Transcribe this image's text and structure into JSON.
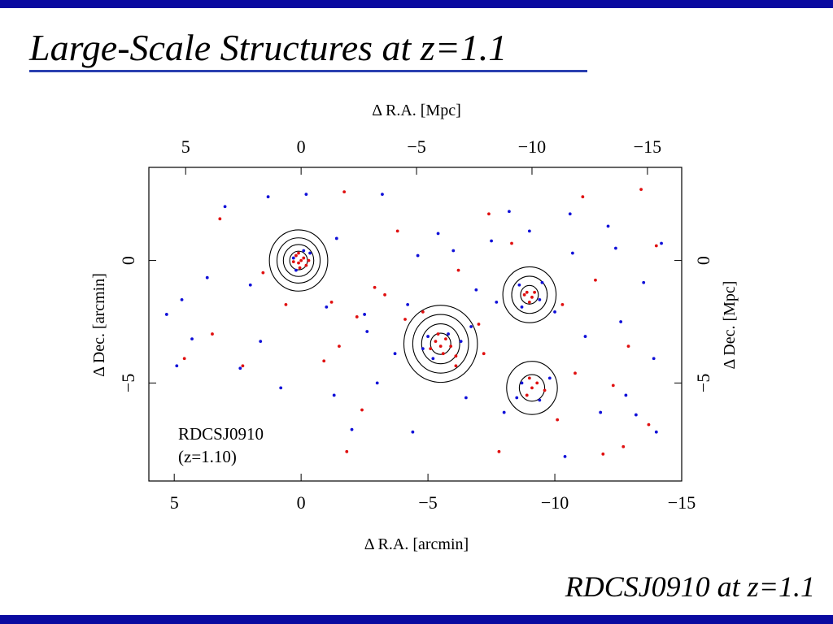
{
  "slide": {
    "title": "Large-Scale Structures at z=1.1",
    "caption": "RDCSJ0910 at z=1.1",
    "bar_color": "#0a0aa0"
  },
  "chart_data": {
    "type": "scatter",
    "xlabel_bottom": "Δ R.A.   [arcmin]",
    "xlabel_top": "Δ R.A.   [Mpc]",
    "ylabel_left": "Δ Dec.   [arcmin]",
    "ylabel_right": "Δ Dec.   [Mpc]",
    "xlim": [
      6.0,
      -15.0
    ],
    "ylim": [
      -9.0,
      3.8
    ],
    "x_ticks_bottom": [
      5,
      0,
      -5,
      -10,
      -15
    ],
    "x_tick_labels_bottom": [
      "5",
      "0",
      "−5",
      "−10",
      "−15"
    ],
    "x_ticks_top_mpc": [
      5,
      0,
      -5,
      -10,
      -15
    ],
    "x_tick_labels_top": [
      "5",
      "0",
      "−5",
      "−10",
      "−15"
    ],
    "y_ticks_left": [
      0,
      -5
    ],
    "y_tick_labels_left": [
      "0",
      "−5"
    ],
    "y_ticks_right_mpc": [
      0,
      -5
    ],
    "y_tick_labels_right": [
      "0",
      "−5"
    ],
    "annotation": [
      "RDCSJ0910",
      "(z=1.10)"
    ],
    "grid": false,
    "series": [
      {
        "color": "#e01010",
        "points": [
          [
            0.0,
            0.0
          ],
          [
            0.1,
            -0.1
          ],
          [
            -0.1,
            0.1
          ],
          [
            0.2,
            0.2
          ],
          [
            -0.2,
            -0.2
          ],
          [
            0.05,
            -0.3
          ],
          [
            -0.3,
            0.0
          ],
          [
            0.3,
            -0.05
          ],
          [
            0.1,
            0.3
          ],
          [
            -5.3,
            -3.3
          ],
          [
            -5.5,
            -3.5
          ],
          [
            -5.7,
            -3.2
          ],
          [
            -5.1,
            -3.6
          ],
          [
            -5.6,
            -3.8
          ],
          [
            -5.9,
            -3.5
          ],
          [
            -5.4,
            -3.0
          ],
          [
            -6.1,
            -3.9
          ],
          [
            -8.9,
            -1.3
          ],
          [
            -9.1,
            -1.5
          ],
          [
            -9.0,
            -1.7
          ],
          [
            -8.8,
            -1.4
          ],
          [
            -9.2,
            -1.3
          ],
          [
            -9.1,
            -5.2
          ],
          [
            -9.3,
            -5.0
          ],
          [
            -8.9,
            -5.5
          ],
          [
            -9.6,
            -5.3
          ],
          [
            -9.0,
            -4.8
          ],
          [
            4.6,
            -4.0
          ],
          [
            3.5,
            -3.0
          ],
          [
            2.3,
            -4.3
          ],
          [
            1.5,
            -0.5
          ],
          [
            0.6,
            -1.8
          ],
          [
            -1.2,
            -1.7
          ],
          [
            -1.5,
            -3.5
          ],
          [
            -1.8,
            -7.8
          ],
          [
            -2.2,
            -2.3
          ],
          [
            -2.9,
            -1.1
          ],
          [
            -4.1,
            -2.4
          ],
          [
            -6.1,
            -4.3
          ],
          [
            -7.0,
            -2.6
          ],
          [
            -7.4,
            1.9
          ],
          [
            -7.2,
            -3.8
          ],
          [
            -7.8,
            -7.8
          ],
          [
            -8.3,
            0.7
          ],
          [
            -10.1,
            -6.5
          ],
          [
            -10.3,
            -1.8
          ],
          [
            -11.1,
            2.6
          ],
          [
            -11.6,
            -0.8
          ],
          [
            -12.7,
            -7.6
          ],
          [
            -12.9,
            -3.5
          ],
          [
            -13.4,
            2.9
          ],
          [
            -13.7,
            -6.7
          ],
          [
            -14.0,
            0.6
          ],
          [
            -1.7,
            2.8
          ],
          [
            3.2,
            1.7
          ],
          [
            -3.3,
            -1.4
          ],
          [
            -4.8,
            -2.1
          ],
          [
            -6.2,
            -0.4
          ],
          [
            -0.9,
            -4.1
          ],
          [
            -2.4,
            -6.1
          ],
          [
            -3.8,
            1.2
          ],
          [
            -10.8,
            -4.6
          ],
          [
            -11.9,
            -7.9
          ],
          [
            -12.3,
            -5.1
          ]
        ]
      },
      {
        "color": "#1010d8",
        "points": [
          [
            0.3,
            0.1
          ],
          [
            -0.1,
            0.4
          ],
          [
            0.2,
            -0.4
          ],
          [
            -0.35,
            0.3
          ],
          [
            -5.0,
            -3.1
          ],
          [
            -5.8,
            -3.0
          ],
          [
            -5.2,
            -4.0
          ],
          [
            -4.8,
            -3.6
          ],
          [
            -6.3,
            -3.3
          ],
          [
            -8.6,
            -1.0
          ],
          [
            -9.4,
            -1.6
          ],
          [
            -8.7,
            -1.9
          ],
          [
            -9.5,
            -0.9
          ],
          [
            -8.7,
            -5.0
          ],
          [
            -9.4,
            -5.7
          ],
          [
            -8.5,
            -5.6
          ],
          [
            -9.8,
            -4.8
          ],
          [
            5.3,
            -2.2
          ],
          [
            4.7,
            -1.6
          ],
          [
            4.3,
            -3.2
          ],
          [
            3.7,
            -0.7
          ],
          [
            3.0,
            2.2
          ],
          [
            2.4,
            -4.4
          ],
          [
            1.3,
            2.6
          ],
          [
            -0.2,
            2.7
          ],
          [
            -1.0,
            -1.9
          ],
          [
            -1.3,
            -5.5
          ],
          [
            -2.0,
            -6.9
          ],
          [
            -2.6,
            -2.9
          ],
          [
            -3.2,
            2.7
          ],
          [
            -3.7,
            -3.8
          ],
          [
            -4.4,
            -7.0
          ],
          [
            -4.6,
            0.2
          ],
          [
            -5.4,
            1.1
          ],
          [
            -6.0,
            0.4
          ],
          [
            -6.5,
            -5.6
          ],
          [
            -6.9,
            -1.2
          ],
          [
            -7.7,
            -1.7
          ],
          [
            -8.0,
            -6.2
          ],
          [
            -8.2,
            2.0
          ],
          [
            -9.0,
            1.2
          ],
          [
            -10.0,
            -2.1
          ],
          [
            -10.4,
            -8.0
          ],
          [
            -10.7,
            0.3
          ],
          [
            -11.2,
            -3.1
          ],
          [
            -11.8,
            -6.2
          ],
          [
            -12.1,
            1.4
          ],
          [
            -12.6,
            -2.5
          ],
          [
            -12.8,
            -5.5
          ],
          [
            -13.2,
            -6.3
          ],
          [
            -13.5,
            -0.9
          ],
          [
            -13.9,
            -4.0
          ],
          [
            -14.2,
            0.7
          ],
          [
            -14.0,
            -7.0
          ],
          [
            1.6,
            -3.3
          ],
          [
            0.8,
            -5.2
          ],
          [
            -1.4,
            0.9
          ],
          [
            -2.5,
            -2.2
          ],
          [
            -4.2,
            -1.8
          ],
          [
            -6.7,
            -2.7
          ],
          [
            -7.5,
            0.8
          ],
          [
            -10.6,
            1.9
          ],
          [
            -12.4,
            0.5
          ],
          [
            2.0,
            -1.0
          ],
          [
            4.9,
            -4.3
          ],
          [
            -3.0,
            -5.0
          ]
        ]
      }
    ],
    "contours": [
      {
        "center": [
          0.1,
          0.0
        ],
        "radii_arcmin": [
          0.35,
          0.6,
          0.85,
          1.15
        ]
      },
      {
        "center": [
          -5.5,
          -3.4
        ],
        "radii_arcmin": [
          0.4,
          0.75,
          1.1,
          1.45
        ]
      },
      {
        "center": [
          -9.0,
          -1.4
        ],
        "radii_arcmin": [
          0.35,
          0.7,
          1.05
        ]
      },
      {
        "center": [
          -9.1,
          -5.2
        ],
        "radii_arcmin": [
          0.5,
          1.0
        ]
      }
    ]
  }
}
